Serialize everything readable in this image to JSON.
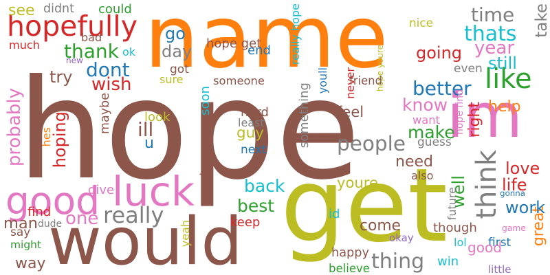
{
  "palette": {
    "brown": "#8c564b",
    "orange": "#ff7f0e",
    "olive": "#bcbd22",
    "pink": "#e377c2",
    "red": "#d62728",
    "green": "#2ca02c",
    "blue": "#1f77b4",
    "cyan": "#17becf",
    "gray": "#7f7f7f",
    "purple": "#9467bd"
  },
  "words": [
    {
      "text": "hope",
      "color": "brown"
    },
    {
      "text": "name",
      "color": "orange"
    },
    {
      "text": "get",
      "color": "olive"
    },
    {
      "text": "would",
      "color": "brown"
    },
    {
      "text": "im",
      "color": "pink"
    },
    {
      "text": "luck",
      "color": "pink"
    },
    {
      "text": "good",
      "color": "pink"
    },
    {
      "text": "hopefully",
      "color": "red"
    },
    {
      "text": "like",
      "color": "green"
    },
    {
      "text": "really",
      "color": "gray"
    },
    {
      "text": "think",
      "color": "gray"
    },
    {
      "text": "people",
      "color": "gray"
    },
    {
      "text": "better",
      "color": "blue"
    },
    {
      "text": "thats",
      "color": "cyan"
    },
    {
      "text": "dont",
      "color": "blue"
    },
    {
      "text": "thank",
      "color": "green"
    },
    {
      "text": "time",
      "color": "gray"
    },
    {
      "text": "year",
      "color": "pink"
    },
    {
      "text": "going",
      "color": "red"
    },
    {
      "text": "still",
      "color": "cyan"
    },
    {
      "text": "take",
      "color": "gray"
    },
    {
      "text": "day",
      "color": "gray"
    },
    {
      "text": "go",
      "color": "blue"
    },
    {
      "text": "see",
      "color": "olive"
    },
    {
      "text": "didnt",
      "color": "gray"
    },
    {
      "text": "could",
      "color": "green"
    },
    {
      "text": "hope get",
      "color": "brown"
    },
    {
      "text": "really hope",
      "color": "cyan"
    },
    {
      "text": "hope youre",
      "color": "olive"
    },
    {
      "text": "bad",
      "color": "brown"
    },
    {
      "text": "much",
      "color": "red"
    },
    {
      "text": "new",
      "color": "purple"
    },
    {
      "text": "ok",
      "color": "cyan"
    },
    {
      "text": "end",
      "color": "blue"
    },
    {
      "text": "got",
      "color": "brown"
    },
    {
      "text": "sure",
      "color": "olive"
    },
    {
      "text": "someone",
      "color": "brown"
    },
    {
      "text": "youll",
      "color": "blue"
    },
    {
      "text": "never",
      "color": "red"
    },
    {
      "text": "friend",
      "color": "brown"
    },
    {
      "text": "nice",
      "color": "olive"
    },
    {
      "text": "want",
      "color": "pink"
    },
    {
      "text": "even",
      "color": "gray"
    },
    {
      "text": "try",
      "color": "brown"
    },
    {
      "text": "wish",
      "color": "red"
    },
    {
      "text": "know",
      "color": "pink"
    },
    {
      "text": "right",
      "color": "red"
    },
    {
      "text": "help",
      "color": "orange"
    },
    {
      "text": "make",
      "color": "green"
    },
    {
      "text": "probably",
      "color": "pink"
    },
    {
      "text": "hoping",
      "color": "red"
    },
    {
      "text": "maybe",
      "color": "brown"
    },
    {
      "text": "ill",
      "color": "brown"
    },
    {
      "text": "u",
      "color": "blue"
    },
    {
      "text": "look",
      "color": "olive"
    },
    {
      "text": "soon",
      "color": "cyan"
    },
    {
      "text": "hard",
      "color": "brown"
    },
    {
      "text": "least",
      "color": "gray"
    },
    {
      "text": "guy",
      "color": "olive"
    },
    {
      "text": "next",
      "color": "blue"
    },
    {
      "text": "happen",
      "color": "brown"
    },
    {
      "text": "something",
      "color": "gray"
    },
    {
      "text": "feel",
      "color": "brown"
    },
    {
      "text": "guess",
      "color": "gray"
    },
    {
      "text": "hope find",
      "color": "pink"
    },
    {
      "text": "great",
      "color": "orange"
    },
    {
      "text": "need",
      "color": "brown"
    },
    {
      "text": "love",
      "color": "red"
    },
    {
      "text": "life",
      "color": "red"
    },
    {
      "text": "work",
      "color": "blue"
    },
    {
      "text": "well",
      "color": "green"
    },
    {
      "text": "also",
      "color": "brown"
    },
    {
      "text": "gonna",
      "color": "blue"
    },
    {
      "text": "future",
      "color": "gray"
    },
    {
      "text": "back",
      "color": "cyan"
    },
    {
      "text": "youre",
      "color": "olive"
    },
    {
      "text": "best",
      "color": "green"
    },
    {
      "text": "hes",
      "color": "orange"
    },
    {
      "text": "give",
      "color": "pink"
    },
    {
      "text": "find",
      "color": "red"
    },
    {
      "text": "one",
      "color": "pink"
    },
    {
      "text": "man",
      "color": "brown"
    },
    {
      "text": "dude",
      "color": "gray"
    },
    {
      "text": "say",
      "color": "brown"
    },
    {
      "text": "might",
      "color": "green"
    },
    {
      "text": "way",
      "color": "brown"
    },
    {
      "text": "yeah",
      "color": "olive"
    },
    {
      "text": "keep",
      "color": "red"
    },
    {
      "text": "id",
      "color": "cyan"
    },
    {
      "text": "come",
      "color": "brown"
    },
    {
      "text": "thing",
      "color": "gray"
    },
    {
      "text": "happy",
      "color": "brown"
    },
    {
      "text": "believe",
      "color": "green"
    },
    {
      "text": "okay",
      "color": "purple"
    },
    {
      "text": "though",
      "color": "brown"
    },
    {
      "text": "lol",
      "color": "cyan"
    },
    {
      "text": "win",
      "color": "cyan"
    },
    {
      "text": "first",
      "color": "blue"
    },
    {
      "text": "little",
      "color": "purple"
    },
    {
      "text": "game",
      "color": "pink"
    },
    {
      "text": "good",
      "color": "pink"
    }
  ]
}
